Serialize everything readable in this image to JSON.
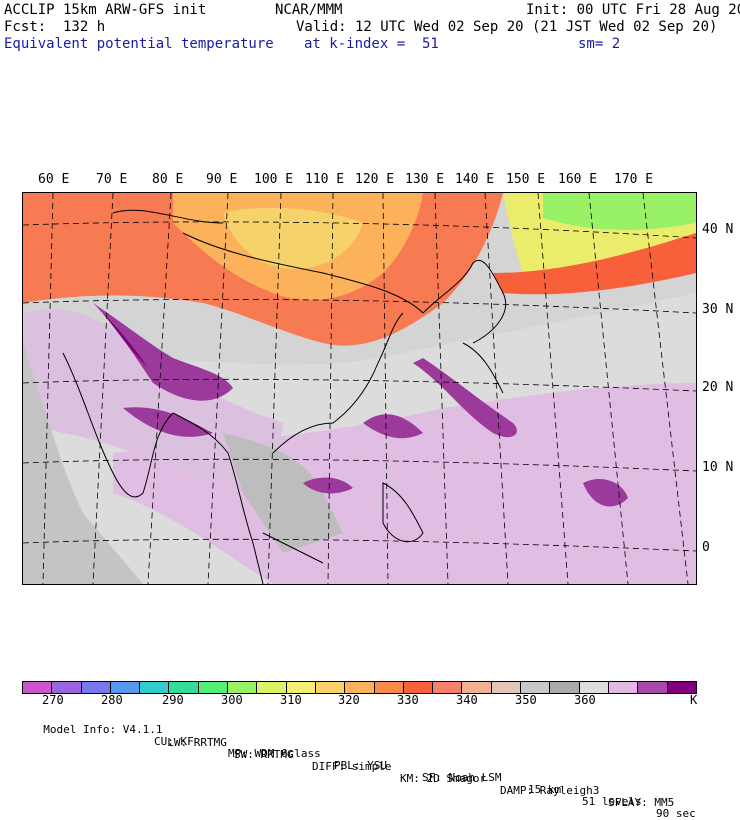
{
  "header": {
    "model": "ACCLIP 15km ARW-GFS init",
    "org": "NCAR/MMM",
    "init": "Init: 00 UTC Fri 28 Aug 20",
    "fcst": "Fcst:  132 h",
    "valid": "Valid: 12 UTC Wed 02 Sep 20 (21 JST Wed 02 Sep 20)",
    "field": "Equivalent potential temperature",
    "level": "at k-index =  51",
    "smooth": "sm= 2"
  },
  "map": {
    "lon_labels": [
      "60 E",
      "70 E",
      "80 E",
      "90 E",
      "100 E",
      "110 E",
      "120 E",
      "130 E",
      "140 E",
      "150 E",
      "160 E",
      "170 E"
    ],
    "lat_labels": [
      "40 N",
      "30 N",
      "20 N",
      "10 N",
      "0"
    ]
  },
  "colorbar": {
    "colors": [
      "#cc55cc",
      "#9966dd",
      "#7777ee",
      "#5599ee",
      "#33cccc",
      "#33dd99",
      "#55ee77",
      "#99f266",
      "#ddf266",
      "#f6ee6e",
      "#fbd26a",
      "#fbb25a",
      "#fb8a4a",
      "#f8603c",
      "#f6826e",
      "#f4b092",
      "#e4c6b6",
      "#c8c8c8",
      "#aaaaaa",
      "#dddddd",
      "#e2bae2",
      "#a848a8",
      "#800080"
    ],
    "labels": [
      "270",
      "280",
      "290",
      "300",
      "310",
      "320",
      "330",
      "340",
      "350",
      "360"
    ],
    "unit": "K"
  },
  "footer": {
    "line1": [
      "Model Info: V4.1.1",
      "CU: KF",
      "MP: WDM 6class",
      "PBL: YSU",
      "SF: Noah LSM",
      "15 km",
      "51 levels",
      "90 sec"
    ],
    "line2": [
      "LW: RRTMG",
      "SW: RRTMG",
      "DIFF: simple",
      "KM: 2D Smagor",
      "DAMP: Rayleigh3",
      "SFLAY: MM5"
    ]
  }
}
